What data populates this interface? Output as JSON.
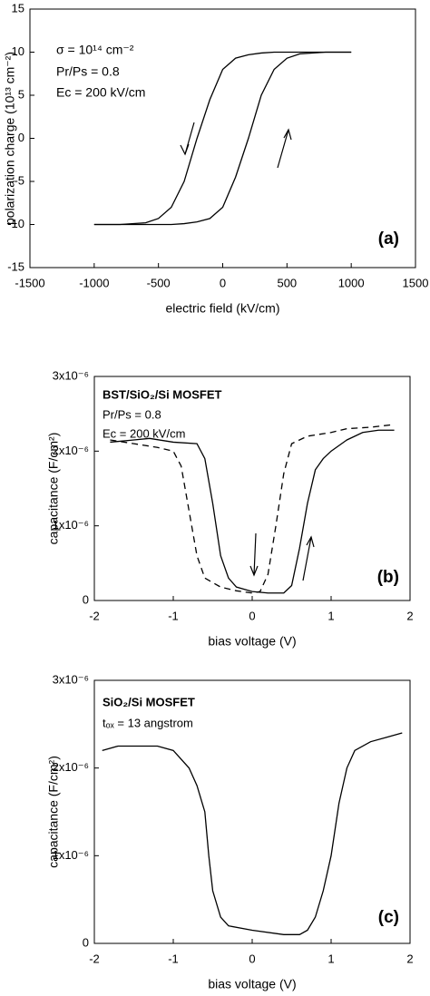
{
  "chart_data": [
    {
      "type": "line",
      "x_label": "electric field (kV/cm)",
      "y_label": "polarization charge (10¹³ cm⁻²)",
      "annotations": [
        "σ = 10¹⁴ cm⁻²",
        "Pr/Ps = 0.8",
        "Ec = 200 kV/cm",
        "(a)"
      ],
      "x": [
        -1000,
        -800,
        -600,
        -500,
        -400,
        -300,
        -200,
        -100,
        0,
        100,
        200,
        300,
        400,
        500,
        600,
        800,
        1000
      ],
      "series": [
        {
          "color": "#000000",
          "dash": false,
          "values": [
            -10,
            -10,
            -9.8,
            -9.3,
            -8,
            -5,
            0,
            4.5,
            8,
            9.3,
            9.7,
            9.9,
            10,
            10,
            10,
            10,
            10
          ]
        },
        {
          "color": "#000000",
          "dash": false,
          "values": [
            -10,
            -10,
            -10,
            -10,
            -10,
            -9.9,
            -9.7,
            -9.3,
            -8,
            -4.5,
            0,
            5,
            8,
            9.3,
            9.8,
            10,
            10
          ]
        }
      ],
      "xlim": [
        -1500,
        1500
      ],
      "xticks": [
        -1500,
        -1000,
        -500,
        0,
        500,
        1000,
        1500
      ],
      "ylim": [
        -15,
        15
      ],
      "yticks": [
        -15,
        -10,
        -5,
        0,
        5,
        10,
        15
      ]
    },
    {
      "type": "line",
      "x_label": "bias voltage (V)",
      "y_label": "capacitance (F/cm²)",
      "annotations": [
        "BST/SiO₂/Si MOSFET",
        "Pr/Ps = 0.8",
        "Ec = 200 kV/cm",
        "(b)"
      ],
      "series": [
        {
          "color": "#000000",
          "dash": false,
          "x": [
            -1.8,
            -1.5,
            -1.3,
            -1.0,
            -0.7,
            -0.6,
            -0.5,
            -0.4,
            -0.3,
            -0.2,
            0,
            0.2,
            0.4,
            0.5,
            0.6,
            0.7,
            0.8,
            0.9,
            1.0,
            1.2,
            1.4,
            1.6,
            1.8
          ],
          "values": [
            2.12e-06,
            2.15e-06,
            2.17e-06,
            2.12e-06,
            2.1e-06,
            1.9e-06,
            1.3e-06,
            6e-07,
            3e-07,
            1.8e-07,
            1.2e-07,
            1e-07,
            1e-07,
            2e-07,
            7e-07,
            1.3e-06,
            1.75e-06,
            1.9e-06,
            2e-06,
            2.15e-06,
            2.25e-06,
            2.28e-06,
            2.28e-06
          ]
        },
        {
          "color": "#000000",
          "dash": true,
          "x": [
            -1.8,
            -1.5,
            -1.2,
            -1.0,
            -0.9,
            -0.8,
            -0.7,
            -0.6,
            -0.4,
            -0.2,
            0,
            0.1,
            0.2,
            0.3,
            0.4,
            0.5,
            0.7,
            1.0,
            1.2,
            1.5,
            1.75
          ],
          "values": [
            2.15e-06,
            2.1e-06,
            2.05e-06,
            2e-06,
            1.8e-06,
            1.2e-06,
            6e-07,
            3e-07,
            1.8e-07,
            1.3e-07,
            1e-07,
            1.2e-07,
            3.5e-07,
            1e-06,
            1.7e-06,
            2.1e-06,
            2.2e-06,
            2.25e-06,
            2.3e-06,
            2.32e-06,
            2.35e-06
          ]
        }
      ],
      "xlim": [
        -2,
        2
      ],
      "xticks": [
        -2,
        -1,
        0,
        1,
        2
      ],
      "ylim": [
        0,
        3e-06
      ],
      "yticks": [
        0,
        {
          "value": 1e-06,
          "label": "1x10⁻⁶"
        },
        {
          "value": 2e-06,
          "label": "2x10⁻⁶"
        },
        {
          "value": 3e-06,
          "label": "3x10⁻⁶"
        }
      ]
    },
    {
      "type": "line",
      "x_label": "bias voltage (V)",
      "y_label": "capacitance (F/cm²)",
      "annotations": [
        "SiO₂/Si MOSFET",
        "tₒₓ = 13 angstrom",
        "(c)"
      ],
      "series": [
        {
          "color": "#000000",
          "dash": false,
          "x": [
            -1.9,
            -1.7,
            -1.2,
            -1.0,
            -0.8,
            -0.7,
            -0.6,
            -0.55,
            -0.5,
            -0.4,
            -0.3,
            0,
            0.4,
            0.6,
            0.7,
            0.8,
            0.9,
            1.0,
            1.1,
            1.2,
            1.3,
            1.5,
            1.7,
            1.9
          ],
          "values": [
            2.2e-06,
            2.25e-06,
            2.25e-06,
            2.2e-06,
            2e-06,
            1.8e-06,
            1.5e-06,
            1e-06,
            6e-07,
            3e-07,
            2e-07,
            1.5e-07,
            1e-07,
            1e-07,
            1.5e-07,
            3e-07,
            6e-07,
            1e-06,
            1.6e-06,
            2e-06,
            2.2e-06,
            2.3e-06,
            2.35e-06,
            2.4e-06
          ]
        }
      ],
      "xlim": [
        -2,
        2
      ],
      "xticks": [
        -2,
        -1,
        0,
        1,
        2
      ],
      "ylim": [
        0,
        3e-06
      ],
      "yticks": [
        0,
        {
          "value": 1e-06,
          "label": "1x10⁻⁶"
        },
        {
          "value": 2e-06,
          "label": "2x10⁻⁶"
        },
        {
          "value": 3e-06,
          "label": "3x10⁻⁶"
        }
      ]
    }
  ]
}
